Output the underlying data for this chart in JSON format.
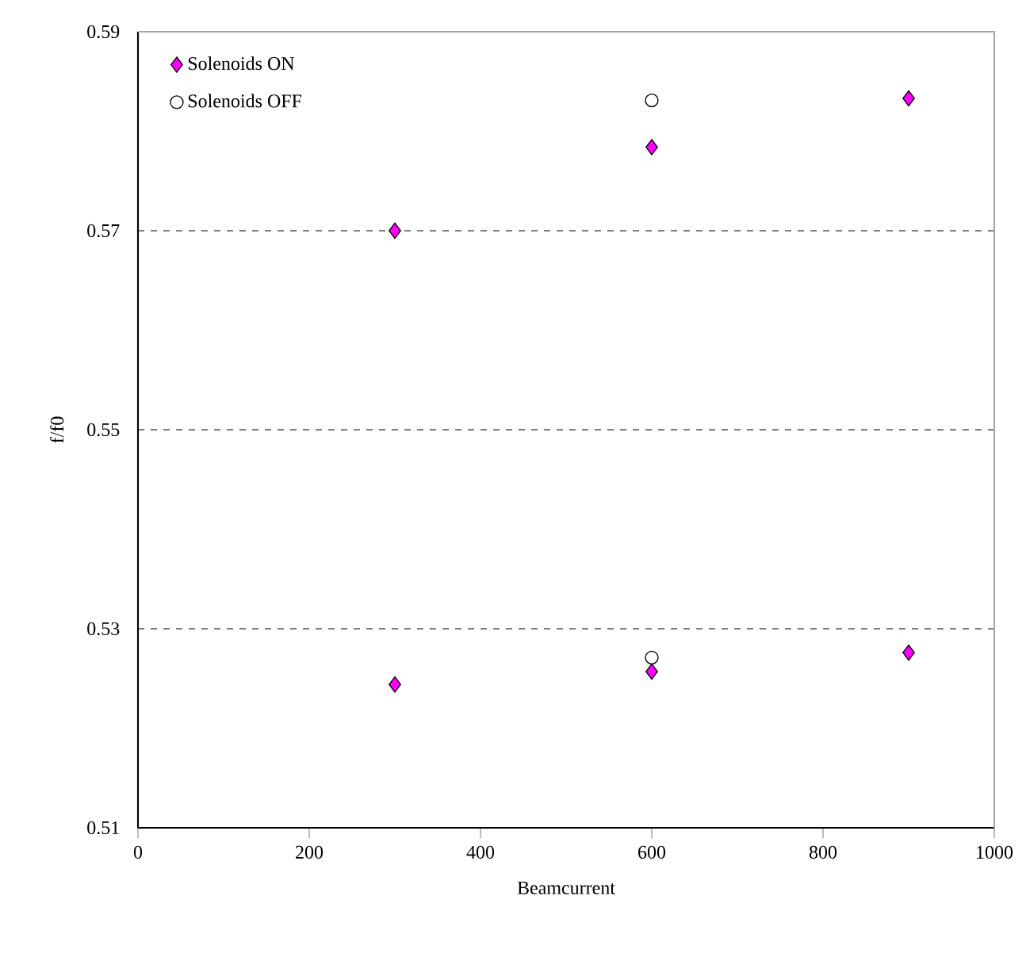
{
  "chart_data": {
    "type": "scatter",
    "xlabel": "Beamcurrent",
    "ylabel": "f/f0",
    "xlim": [
      0,
      1000
    ],
    "xticks": [
      0,
      200,
      400,
      600,
      800,
      1000
    ],
    "ylim": [
      0.51,
      0.59
    ],
    "yticks": [
      0.51,
      0.53,
      0.55,
      0.57,
      0.59
    ],
    "grid": "y",
    "legend": "top left",
    "series": [
      {
        "name": "Solenoids ON",
        "color": "#ff00ff",
        "marker": "diamond",
        "x": [
          300,
          300,
          600,
          600,
          900,
          900
        ],
        "values": [
          0.5244,
          0.57,
          0.5257,
          0.5784,
          0.5276,
          0.5833
        ]
      },
      {
        "name": "Solenoids OFF",
        "color": "#000000",
        "marker": "circle",
        "x": [
          600,
          600
        ],
        "values": [
          0.5271,
          0.5831
        ]
      }
    ]
  }
}
